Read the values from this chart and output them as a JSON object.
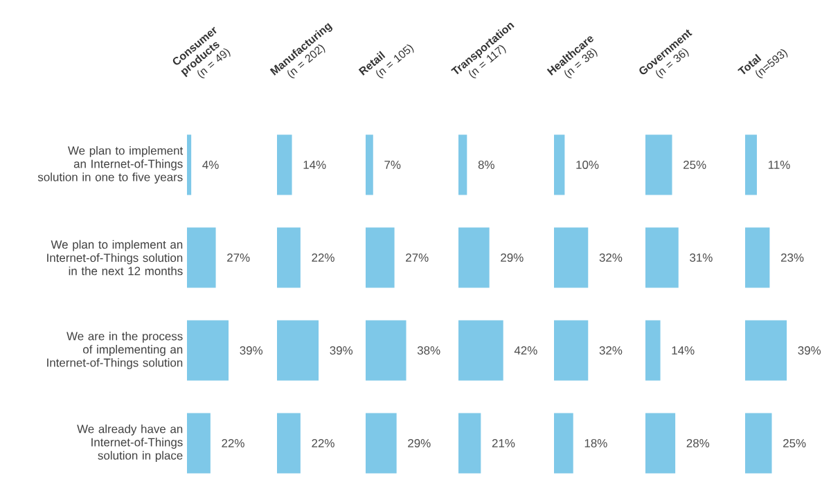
{
  "chart_data": [
    {
      "type": "bar",
      "orientation": "horizontal",
      "title": "Consumer products",
      "subtitle": "(n = 49)",
      "categories": [
        "We plan to implement an Internet-of-Things solution in one to five years",
        "We plan to implement an Internet-of-Things solution in the next 12 months",
        "We are in the process of implementing an Internet-of-Things solution",
        "We already have an Internet-of-Things solution in place"
      ],
      "values": [
        4,
        27,
        39,
        22
      ],
      "value_labels": [
        "4%",
        "27%",
        "39%",
        "22%"
      ],
      "color": "#7ec8e8",
      "tick_labels": "y"
    },
    {
      "type": "bar",
      "orientation": "horizontal",
      "title": "Manufacturing",
      "subtitle": "(n = 202)",
      "categories": [
        null,
        null,
        null,
        null
      ],
      "values": [
        14,
        22,
        39,
        22
      ],
      "value_labels": [
        "14%",
        "22%",
        "39%",
        "22%"
      ],
      "color": "#7ec8e8",
      "tick_labels": false
    },
    {
      "type": "bar",
      "orientation": "horizontal",
      "title": "Retail",
      "subtitle": "(n = 105)",
      "categories": [
        null,
        null,
        null,
        null
      ],
      "values": [
        7,
        27,
        38,
        29
      ],
      "value_labels": [
        "7%",
        "27%",
        "38%",
        "29%"
      ],
      "color": "#7ec8e8",
      "tick_labels": false
    },
    {
      "type": "bar",
      "orientation": "horizontal",
      "title": "Transportation",
      "subtitle": "(n = 117)",
      "categories": [
        null,
        null,
        null,
        null
      ],
      "values": [
        8,
        29,
        42,
        21
      ],
      "value_labels": [
        "8%",
        "29%",
        "42%",
        "21%"
      ],
      "color": "#7ec8e8",
      "tick_labels": false
    },
    {
      "type": "bar",
      "orientation": "horizontal",
      "title": "Healthcare",
      "subtitle": "(n = 38)",
      "categories": [
        null,
        null,
        null,
        null
      ],
      "values": [
        10,
        32,
        32,
        18
      ],
      "value_labels": [
        "10%",
        "32%",
        "32%",
        "18%"
      ],
      "color": "#7ec8e8",
      "tick_labels": false
    },
    {
      "type": "bar",
      "orientation": "horizontal",
      "title": "Government",
      "subtitle": "(n = 36)",
      "categories": [
        null,
        null,
        null,
        null
      ],
      "values": [
        25,
        31,
        14,
        28
      ],
      "value_labels": [
        "25%",
        "31%",
        "14%",
        "28%"
      ],
      "color": "#7ec8e8",
      "tick_labels": false
    },
    {
      "type": "bar",
      "orientation": "horizontal",
      "title": "Total",
      "subtitle": "(n=593)",
      "categories": [
        null,
        null,
        null,
        null
      ],
      "values": [
        11,
        23,
        39,
        25
      ],
      "value_labels": [
        "11%",
        "23%",
        "39%",
        "25%"
      ],
      "color": "#7ec8e8",
      "tick_labels": false
    }
  ]
}
